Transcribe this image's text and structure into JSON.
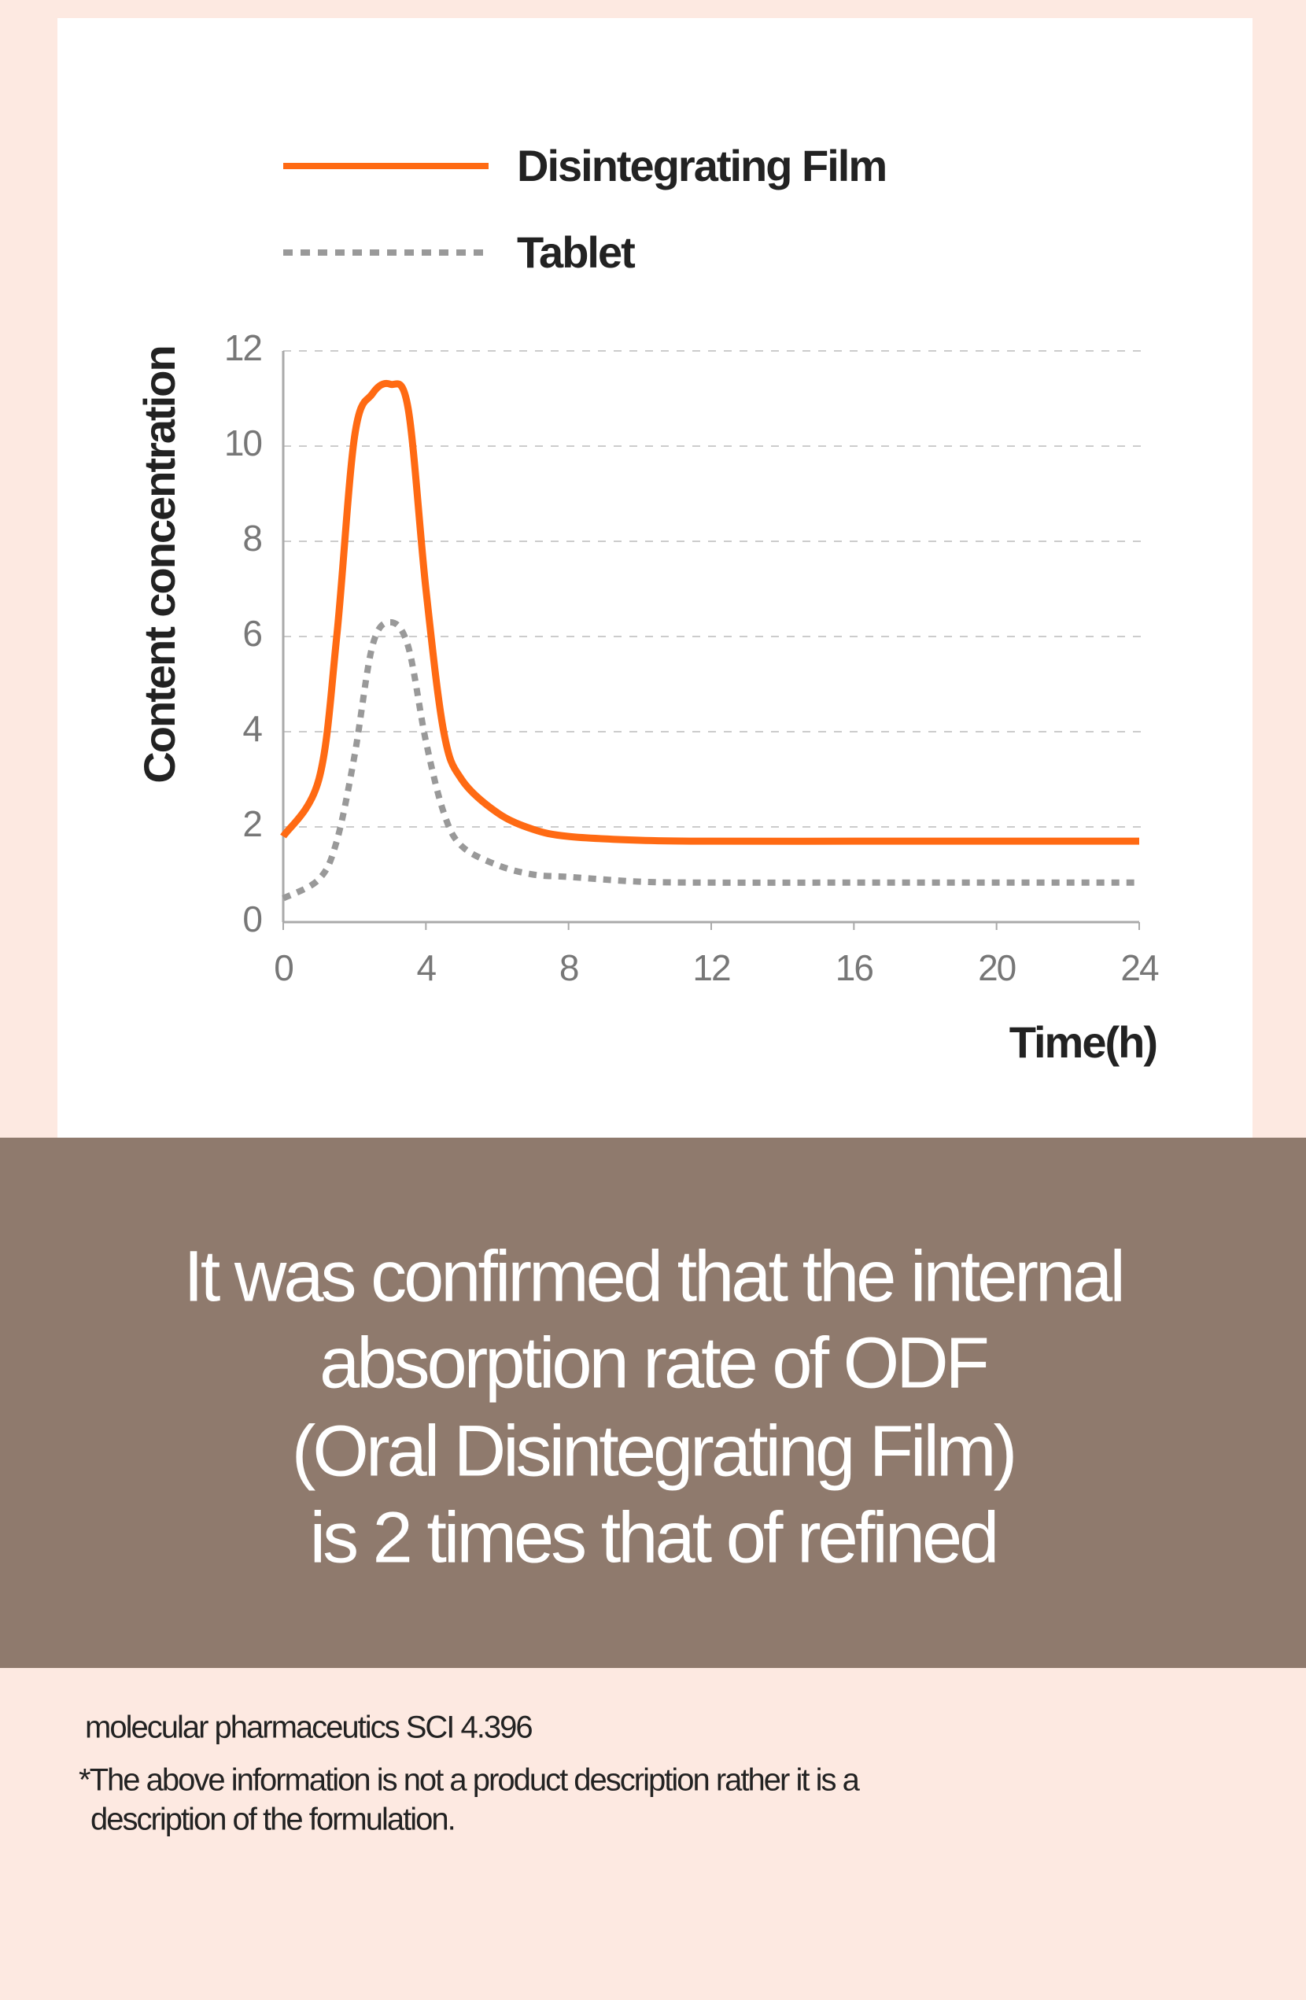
{
  "chart_data": {
    "type": "line",
    "x": [
      0,
      1,
      1.5,
      2,
      2.5,
      3,
      3.5,
      4,
      4.5,
      5,
      6,
      7,
      8,
      10,
      12,
      16,
      20,
      24
    ],
    "series": [
      {
        "name": "Disintegrating Film",
        "color": "#ff6a13",
        "dashed": false,
        "values": [
          1.8,
          3.0,
          6.0,
          10.2,
          11.1,
          11.3,
          10.8,
          7.0,
          4.0,
          3.0,
          2.3,
          1.95,
          1.8,
          1.72,
          1.7,
          1.7,
          1.7,
          1.7
        ]
      },
      {
        "name": "Tablet",
        "color": "#999999",
        "dashed": true,
        "values": [
          0.5,
          0.9,
          1.7,
          3.5,
          5.8,
          6.3,
          5.8,
          3.8,
          2.3,
          1.6,
          1.2,
          1.0,
          0.95,
          0.85,
          0.83,
          0.83,
          0.83,
          0.83
        ]
      }
    ],
    "xlim": [
      0,
      24
    ],
    "ylim": [
      0,
      12
    ],
    "xticks": [
      0,
      4,
      8,
      12,
      16,
      20,
      24
    ],
    "yticks": [
      0,
      2,
      4,
      6,
      8,
      10,
      12
    ],
    "x_label": "Time(h)",
    "y_label": "Content concentration",
    "grid": true
  },
  "caption": [
    "It was confirmed that the internal",
    "absorption rate of ODF",
    "(Oral Disintegrating Film)",
    "is 2 times that of refined"
  ],
  "footnotes": [
    "molecular pharmaceutics SCI 4.396",
    "*The above information is not a product description rather it is a",
    "description of the formulation."
  ]
}
